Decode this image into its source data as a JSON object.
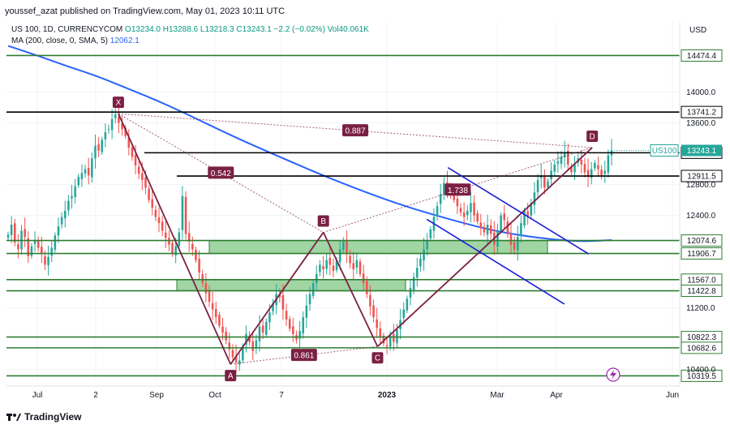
{
  "header": {
    "published": "youssef_azat published on TradingView.com, May 01, 2023 10:11 UTC"
  },
  "legend": {
    "symbol": "US 100, 1D, CURRENCYCOM",
    "ohlc": "O13234.0 H13288.6 L13218.3 C13243.1 −2.2 (−0.02%) Vol40.061K",
    "ma_label": "MA (200, close, 0, SMA, 5)",
    "ma_value": "12062.1"
  },
  "footer": {
    "brand": "TradingView"
  },
  "colors": {
    "up": "#26a69a",
    "down": "#ef5350",
    "ma": "#2962ff",
    "harmonic": "#7b2043",
    "level_green": "#2e7d32",
    "level_black": "#000000",
    "zone_fill": "#81c784",
    "channel": "#1c1cd6"
  },
  "chart_data": {
    "type": "candlestick",
    "currency": "USD",
    "ylim": [
      10250,
      14900
    ],
    "x_ticks": [
      "Jul",
      "2",
      "Sep",
      "Oct",
      "7",
      "2023",
      "Mar",
      "Apr",
      "Jun"
    ],
    "y_ticks": [
      14000,
      13600,
      12800,
      12400,
      11200,
      10400
    ],
    "last_price": {
      "label": "US100",
      "value": "13243.1"
    },
    "horizontal_levels": [
      {
        "value": "14474.4",
        "color": "green",
        "extend": "full"
      },
      {
        "value": "13741.2",
        "color": "black",
        "extend": "from-x"
      },
      {
        "value": "13212.9",
        "color": "black",
        "extend": "from-sep"
      },
      {
        "value": "12911.5",
        "color": "black",
        "extend": "from-sep"
      },
      {
        "value": "12074.6",
        "color": "green",
        "extend": "full"
      },
      {
        "value": "11906.7",
        "color": "green",
        "extend": "full"
      },
      {
        "value": "11567.0",
        "color": "green",
        "extend": "full"
      },
      {
        "value": "11422.8",
        "color": "green",
        "extend": "full"
      },
      {
        "value": "10822.3",
        "color": "green",
        "extend": "full"
      },
      {
        "value": "10682.6",
        "color": "green",
        "extend": "full"
      },
      {
        "value": "10319.5",
        "color": "green",
        "extend": "full"
      }
    ],
    "zones": [
      {
        "from": 11906.7,
        "to": 12074.6,
        "start": "Sep",
        "end": "Mar"
      },
      {
        "from": 11422.8,
        "to": 11567.0,
        "start": "Sep",
        "end": "Jan"
      }
    ],
    "harmonic_points": [
      {
        "label": "X",
        "date": "2022-08-16",
        "price": 13720
      },
      {
        "label": "A",
        "date": "2022-10-13",
        "price": 10470
      },
      {
        "label": "B",
        "date": "2022-11-30",
        "price": 12180
      },
      {
        "label": "C",
        "date": "2022-12-28",
        "price": 10700
      },
      {
        "label": "D",
        "date": "2023-04-18",
        "price": 13280
      }
    ],
    "ratios": [
      "0.887",
      "0.542",
      "1.738",
      "0.861"
    ],
    "close_series": [
      12150,
      12280,
      12050,
      11960,
      12200,
      12120,
      11870,
      12000,
      12080,
      11980,
      11900,
      11760,
      11860,
      11980,
      12140,
      12260,
      12380,
      12460,
      12590,
      12650,
      12780,
      12900,
      12950,
      13000,
      12920,
      13140,
      13300,
      13240,
      13380,
      13480,
      13520,
      13650,
      13710,
      13600,
      13520,
      13430,
      13280,
      13160,
      13050,
      12940,
      12860,
      12760,
      12600,
      12500,
      12380,
      12300,
      12200,
      12110,
      12020,
      11900,
      12000,
      12180,
      12650,
      12160,
      12060,
      11960,
      11820,
      11660,
      11520,
      11390,
      11280,
      11180,
      11080,
      10970,
      10880,
      10780,
      10660,
      10560,
      10490,
      10520,
      10700,
      10860,
      10760,
      10640,
      10780,
      10960,
      10880,
      11020,
      11140,
      11260,
      11380,
      11340,
      11180,
      11050,
      10930,
      10860,
      10790,
      10900,
      11080,
      11230,
      11380,
      11520,
      11640,
      11760,
      11700,
      11820,
      11760,
      11680,
      11820,
      11960,
      12060,
      11900,
      11780,
      11700,
      11820,
      11640,
      11520,
      11380,
      11220,
      11080,
      10940,
      10820,
      10740,
      10700,
      10840,
      10760,
      10920,
      11040,
      11180,
      11320,
      11460,
      11600,
      11720,
      11840,
      11960,
      12080,
      12220,
      12380,
      12520,
      12680,
      12820,
      12760,
      12700,
      12600,
      12520,
      12440,
      12380,
      12460,
      12560,
      12400,
      12320,
      12240,
      12180,
      12280,
      12160,
      12020,
      12200,
      12400,
      12340,
      12160,
      12020,
      11960,
      12120,
      12300,
      12460,
      12380,
      12560,
      12700,
      12860,
      12920,
      12760,
      12840,
      12980,
      13060,
      13100,
      13160,
      13220,
      13060,
      12960,
      13060,
      13140,
      13060,
      12960,
      12900,
      13000,
      13080,
      13000,
      12920,
      12980,
      13180,
      13243
    ],
    "ma200_series": [
      14600,
      14470,
      14330,
      14200,
      14040,
      13880,
      13700,
      13510,
      13330,
      13160,
      12990,
      12830,
      12680,
      12540,
      12420,
      12310,
      12210,
      12140,
      12090,
      12060,
      12080
    ]
  }
}
